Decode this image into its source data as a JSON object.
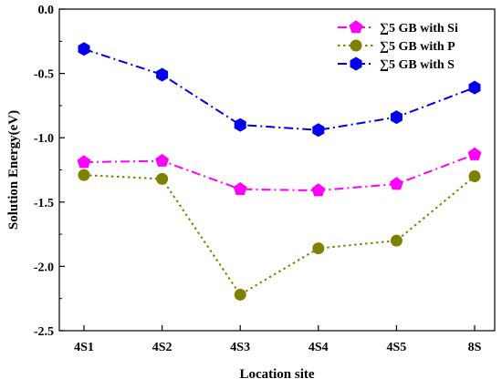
{
  "chart_data": {
    "type": "line",
    "categories": [
      "4S1",
      "4S2",
      "4S3",
      "4S4",
      "4S5",
      "8S"
    ],
    "xlabel": "Location site",
    "ylabel": "Solution Energy(eV)",
    "ylim": [
      -2.5,
      0.0
    ],
    "yticks": [
      "0.0",
      "-0.5",
      "-1.0",
      "-1.5",
      "-2.0",
      "-2.5"
    ],
    "ytick_values": [
      0.0,
      -0.5,
      -1.0,
      -1.5,
      -2.0,
      -2.5
    ],
    "grid": false,
    "legend_position": "top-right",
    "series": [
      {
        "name": "∑5 GB with Si",
        "values": [
          -1.19,
          -1.18,
          -1.4,
          -1.41,
          -1.36,
          -1.13
        ],
        "color": "#ff00ff",
        "line_style": "dash-dot",
        "marker": "pentagon"
      },
      {
        "name": "∑5 GB with P",
        "values": [
          -1.29,
          -1.32,
          -2.22,
          -1.86,
          -1.8,
          -1.3
        ],
        "color": "#808000",
        "line_style": "dotted",
        "marker": "circle"
      },
      {
        "name": "∑5 GB with S",
        "values": [
          -0.31,
          -0.51,
          -0.9,
          -0.94,
          -0.84,
          -0.61
        ],
        "color": "#0000ee",
        "line_style": "dash-dot",
        "marker": "hexagon"
      }
    ]
  }
}
